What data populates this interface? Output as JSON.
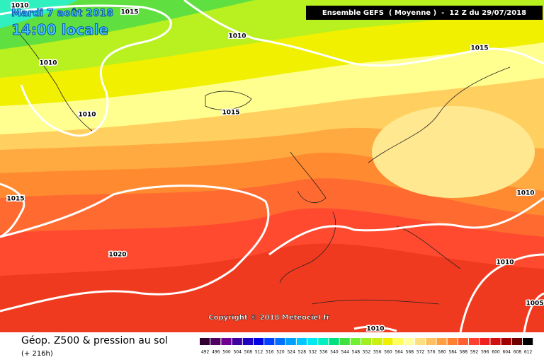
{
  "header": {
    "date": "Mardi 7 août 2018",
    "time": "14:00 locale",
    "run": "Ensemble GEFS  ( Moyenne )  -  12 Z du 29/07/2018"
  },
  "map": {
    "isobar_labels": [
      1010,
      1015,
      1010,
      1010,
      1015,
      1010,
      1015,
      1015,
      1010,
      1020,
      1010,
      1005,
      1010
    ],
    "copyright": "Copyright © 2018 Meteociel.fr"
  },
  "footer": {
    "title": "Géop. Z500 & pression au sol",
    "lead": "(+ 216h)",
    "scale": {
      "values": [
        492,
        496,
        500,
        504,
        508,
        512,
        516,
        520,
        524,
        528,
        532,
        536,
        540,
        544,
        548,
        552,
        556,
        560,
        564,
        568,
        572,
        576,
        580,
        584,
        588,
        592,
        596,
        600,
        604,
        608,
        612
      ],
      "colors": [
        "#300030",
        "#500060",
        "#700090",
        "#4000a0",
        "#2000c0",
        "#0000e0",
        "#0040ff",
        "#0070ff",
        "#00a0ff",
        "#00c8ff",
        "#00e8f0",
        "#00f0c0",
        "#00e080",
        "#40e040",
        "#70f030",
        "#a0f020",
        "#c8f010",
        "#f0f000",
        "#ffff60",
        "#ffffa0",
        "#ffe080",
        "#ffc060",
        "#ffa040",
        "#ff8030",
        "#ff6030",
        "#ff4030",
        "#f02020",
        "#d01010",
        "#a00000",
        "#700000",
        "#000000"
      ]
    }
  }
}
